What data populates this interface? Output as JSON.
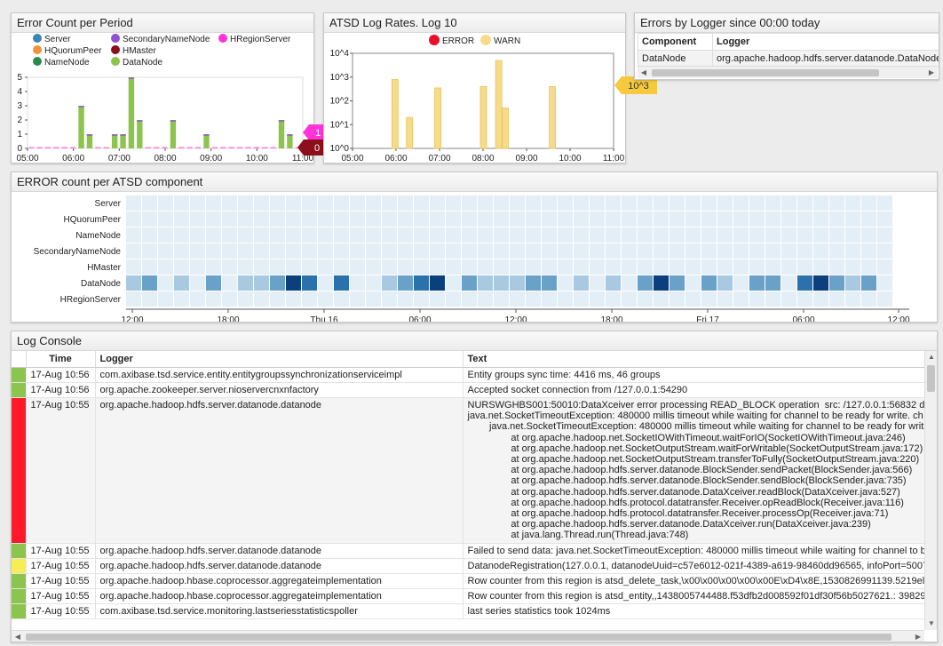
{
  "errorCount": {
    "title": "Error Count per Period",
    "legend": [
      {
        "name": "Server",
        "color": "#3a86b4"
      },
      {
        "name": "SecondaryNameNode",
        "color": "#8e52d6"
      },
      {
        "name": "HRegionServer",
        "color": "#ff33d6"
      },
      {
        "name": "HQuorumPeer",
        "color": "#f0923a"
      },
      {
        "name": "HMaster",
        "color": "#8b0f1c"
      },
      {
        "name": "NameNode",
        "color": "#2a8a4a"
      },
      {
        "name": "DataNode",
        "color": "#8cc44e"
      }
    ],
    "badges": [
      {
        "value": "1",
        "color": "#ff33d6"
      },
      {
        "value": "0",
        "color": "#8b0f1c"
      }
    ]
  },
  "chart_data": [
    {
      "type": "bar",
      "title": "Error Count per Period",
      "x_ticks": [
        "05:00",
        "06:00",
        "07:00",
        "08:00",
        "09:00",
        "10:00",
        "11:00"
      ],
      "y_ticks": [
        "0",
        "1",
        "2",
        "3",
        "4",
        "5"
      ],
      "ylim": [
        0,
        5
      ],
      "series": [
        {
          "name": "DataNode",
          "values": [
            0,
            0,
            0,
            0,
            0,
            0,
            3,
            1,
            0,
            0,
            1,
            1,
            5,
            2,
            0,
            0,
            0,
            2,
            0,
            0,
            0,
            1,
            0,
            0,
            0,
            0,
            0,
            0,
            0,
            0,
            2,
            1,
            0
          ]
        }
      ]
    },
    {
      "type": "bar",
      "title": "ATSD Log Rates. Log 10",
      "log_scale": true,
      "x_ticks": [
        "05:00",
        "06:00",
        "07:00",
        "08:00",
        "09:00",
        "10:00",
        "11:00"
      ],
      "y_ticks": [
        "10^0",
        "10^1",
        "10^2",
        "10^3",
        "10^4"
      ],
      "ylim": [
        1,
        10000
      ],
      "series": [
        {
          "name": "ERROR",
          "color": "#e8102a",
          "values": []
        },
        {
          "name": "WARN",
          "color": "#f6dc8a",
          "values": [
            {
              "x": "05:58",
              "y": 800
            },
            {
              "x": "06:18",
              "y": 20
            },
            {
              "x": "06:57",
              "y": 350
            },
            {
              "x": "08:00",
              "y": 400
            },
            {
              "x": "08:21",
              "y": 5000
            },
            {
              "x": "08:30",
              "y": 50
            },
            {
              "x": "09:35",
              "y": 400
            }
          ]
        }
      ]
    },
    {
      "type": "heatmap",
      "title": "ERROR count per ATSD component",
      "rows": [
        "Server",
        "HQuorumPeer",
        "NameNode",
        "SecondaryNameNode",
        "HMaster",
        "DataNode",
        "HRegionServer"
      ],
      "x_ticks": [
        "12:00",
        "18:00",
        "Thu 16",
        "06:00",
        "12:00",
        "18:00",
        "Fri 17",
        "06:00",
        "12:00"
      ],
      "datanode_levels": [
        1,
        2,
        0,
        1,
        0,
        2,
        0,
        1,
        1,
        2,
        4,
        3,
        0,
        3,
        0,
        0,
        1,
        2,
        3,
        4,
        0,
        2,
        1,
        1,
        1,
        2,
        2,
        0,
        1,
        0,
        1,
        0,
        2,
        4,
        2,
        0,
        2,
        1,
        0,
        2,
        2,
        0,
        3,
        4,
        2,
        1,
        2,
        0
      ]
    }
  ],
  "logRates": {
    "title": "ATSD Log Rates. Log 10",
    "legend": [
      {
        "name": "ERROR",
        "color": "#e8102a"
      },
      {
        "name": "WARN",
        "color": "#f6dc8a"
      }
    ],
    "tooltip": "10^3"
  },
  "errorsByLogger": {
    "title": "Errors by Logger since 00:00 today",
    "headers": [
      "Component",
      "Logger"
    ],
    "rows": [
      [
        "DataNode",
        "org.apache.hadoop.hdfs.server.datanode.DataNode"
      ]
    ]
  },
  "heatmap": {
    "title": "ERROR count per ATSD component"
  },
  "logConsole": {
    "title": "Log Console",
    "headers": [
      "Time",
      "Logger",
      "Text"
    ],
    "rows": [
      {
        "level_color": "#8cc44e",
        "time": "17-Aug 10:56",
        "logger": "com.axibase.tsd.service.entity.entitygroupssynchronizationserviceimpl",
        "text": "Entity groups sync time: 4416 ms, 46 groups"
      },
      {
        "level_color": "#8cc44e",
        "time": "17-Aug 10:56",
        "logger": "org.apache.zookeeper.server.nioservercnxnfactory",
        "text": "Accepted socket connection from /127.0.0.1:54290"
      },
      {
        "level_color": "#ff1a2a",
        "time": "17-Aug 10:55",
        "logger": "org.apache.hadoop.hdfs.server.datanode.datanode",
        "text": "NURSWGHBS001:50010:DataXceiver error processing READ_BLOCK operation  src: /127.0.0.1:56832 d\njava.net.SocketTimeoutException: 480000 millis timeout while waiting for channel to be ready for write. ch\n        java.net.SocketTimeoutException: 480000 millis timeout while waiting for channel to be ready for writ\n                at org.apache.hadoop.net.SocketIOWithTimeout.waitForIO(SocketIOWithTimeout.java:246)\n                at org.apache.hadoop.net.SocketOutputStream.waitForWritable(SocketOutputStream.java:172)\n                at org.apache.hadoop.net.SocketOutputStream.transferToFully(SocketOutputStream.java:220)\n                at org.apache.hadoop.hdfs.server.datanode.BlockSender.sendPacket(BlockSender.java:566)\n                at org.apache.hadoop.hdfs.server.datanode.BlockSender.sendBlock(BlockSender.java:735)\n                at org.apache.hadoop.hdfs.server.datanode.DataXceiver.readBlock(DataXceiver.java:527)\n                at org.apache.hadoop.hdfs.protocol.datatransfer.Receiver.opReadBlock(Receiver.java:116)\n                at org.apache.hadoop.hdfs.protocol.datatransfer.Receiver.processOp(Receiver.java:71)\n                at org.apache.hadoop.hdfs.server.datanode.DataXceiver.run(DataXceiver.java:239)\n                at java.lang.Thread.run(Thread.java:748)"
      },
      {
        "level_color": "#8cc44e",
        "time": "17-Aug 10:55",
        "logger": "org.apache.hadoop.hdfs.server.datanode.datanode",
        "text": "Failed to send data: java.net.SocketTimeoutException: 480000 millis timeout while waiting for channel to b"
      },
      {
        "level_color": "#f7ee55",
        "time": "17-Aug 10:55",
        "logger": "org.apache.hadoop.hdfs.server.datanode.datanode",
        "text": "DatanodeRegistration(127.0.0.1, datanodeUuid=c57e6012-021f-4389-a619-98460dd96565, infoPort=5007"
      },
      {
        "level_color": "#8cc44e",
        "time": "17-Aug 10:55",
        "logger": "org.apache.hadoop.hbase.coprocessor.aggregateimplementation",
        "text": "Row counter from this region is atsd_delete_task,\\x00\\x00\\x00\\x00\\x00E\\xD4\\x8E,1530826991139.5219el"
      },
      {
        "level_color": "#8cc44e",
        "time": "17-Aug 10:55",
        "logger": "org.apache.hadoop.hbase.coprocessor.aggregateimplementation",
        "text": "Row counter from this region is atsd_entity,,1438005744488.f53dfb2d008592f01df30f56b5027621.: 39829"
      },
      {
        "level_color": "#8cc44e",
        "time": "17-Aug 10:55",
        "logger": "com.axibase.tsd.service.monitoring.lastseriesstatisticspoller",
        "text": "last series statistics took 1024ms"
      }
    ]
  }
}
